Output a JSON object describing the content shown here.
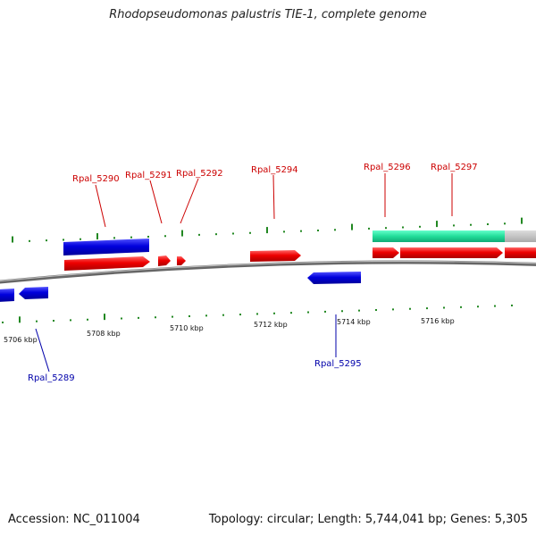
{
  "title": "Rhodopseudomonas palustris TIE-1, complete genome",
  "footer": {
    "accession": "Accession: NC_011004",
    "summary": "Topology: circular; Length: 5,744,041 bp; Genes: 5,305"
  },
  "kbp_labels": [
    "5706 kbp",
    "5708 kbp",
    "5710 kbp",
    "5712 kbp",
    "5714 kbp",
    "5716 kbp"
  ],
  "gene_labels": {
    "forward": [
      "Rpal_5290",
      "Rpal_5291",
      "Rpal_5292",
      "Rpal_5294",
      "Rpal_5296",
      "Rpal_5297"
    ],
    "reverse": [
      "Rpal_5289",
      "Rpal_5295"
    ]
  },
  "colors": {
    "forward_strand": "#ee0000",
    "reverse_strand": "#0000dd",
    "rna_feature": "#33dd99",
    "gc_ticks": "#228822",
    "backbone": "#777777"
  }
}
